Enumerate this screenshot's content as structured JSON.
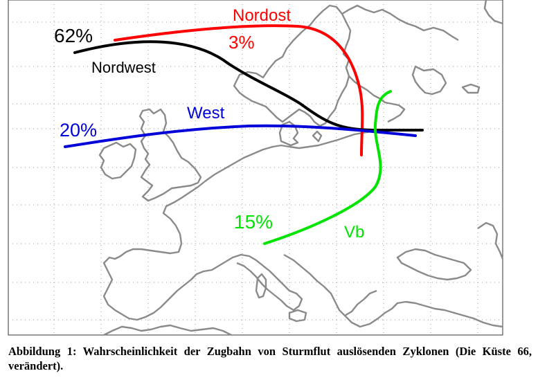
{
  "map": {
    "colors": {
      "coastline": "#8a8a8a",
      "grid": "#9a9a9a",
      "frame": "#555555",
      "nordwest": "#000000",
      "nordost": "#ff0000",
      "west": "#0000d8",
      "vb": "#00e400"
    },
    "tracks": [
      {
        "key": "nordwest",
        "name": "Nordwest",
        "percent": "62%"
      },
      {
        "key": "nordost",
        "name": "Nordost",
        "percent": "3%"
      },
      {
        "key": "west",
        "name": "West",
        "percent": "20%"
      },
      {
        "key": "vb",
        "name": "Vb",
        "percent": "15%"
      }
    ]
  },
  "caption": {
    "text": "Abbildung 1: Wahrscheinlichkeit der Zugbahn von Sturmflut auslösenden Zyklonen (Die Küste 66, verändert)."
  }
}
